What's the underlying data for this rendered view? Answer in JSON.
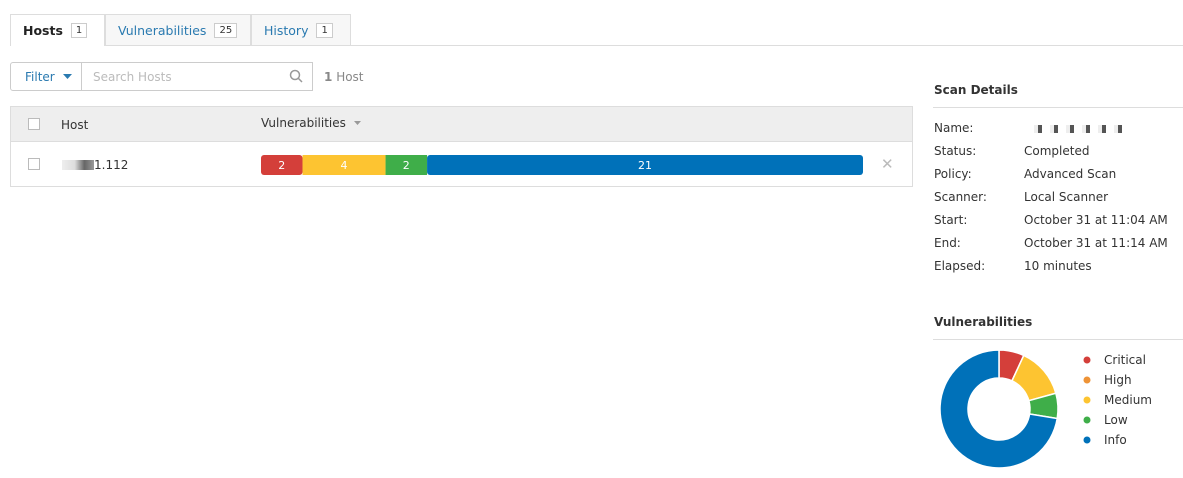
{
  "tabs": [
    {
      "label": "Hosts",
      "count": 1
    },
    {
      "label": "Vulnerabilities",
      "count": 25
    },
    {
      "label": "History",
      "count": 1
    }
  ],
  "toolbar": {
    "filter": "Filter",
    "search_placeholder": "Search Hosts",
    "host_count": 1,
    "host_count_label": "Host"
  },
  "table": {
    "columns": [
      "Host",
      "Vulnerabilities"
    ],
    "rows": [
      {
        "host": "1.112",
        "vulnerabilities": {
          "values": [
            2,
            4,
            2,
            21
          ],
          "colors": [
            "#d43f3a",
            "#fdc431",
            "#3fae49",
            "#0071b9"
          ]
        }
      }
    ]
  },
  "scan_details": {
    "title": "Scan Details",
    "fields": [
      {
        "label": "Name:",
        "value": null
      },
      {
        "label": "Status:",
        "value": "Completed"
      },
      {
        "label": "Policy:",
        "value": "Advanced Scan"
      },
      {
        "label": "Scanner:",
        "value": "Local Scanner"
      },
      {
        "label": "Start:",
        "value": "October 31 at 11:04 AM"
      },
      {
        "label": "End:",
        "value": "October 31 at 11:14 AM"
      },
      {
        "label": "Elapsed:",
        "value": "10 minutes"
      }
    ]
  },
  "chart_data": {
    "type": "pie",
    "title": "Vulnerabilities",
    "categories": [
      "Critical",
      "High",
      "Medium",
      "Low",
      "Info"
    ],
    "values": [
      2,
      0,
      4,
      2,
      21
    ],
    "colors": [
      "#d43f3a",
      "#ee9336",
      "#fdc431",
      "#3fae49",
      "#0071b9"
    ]
  }
}
